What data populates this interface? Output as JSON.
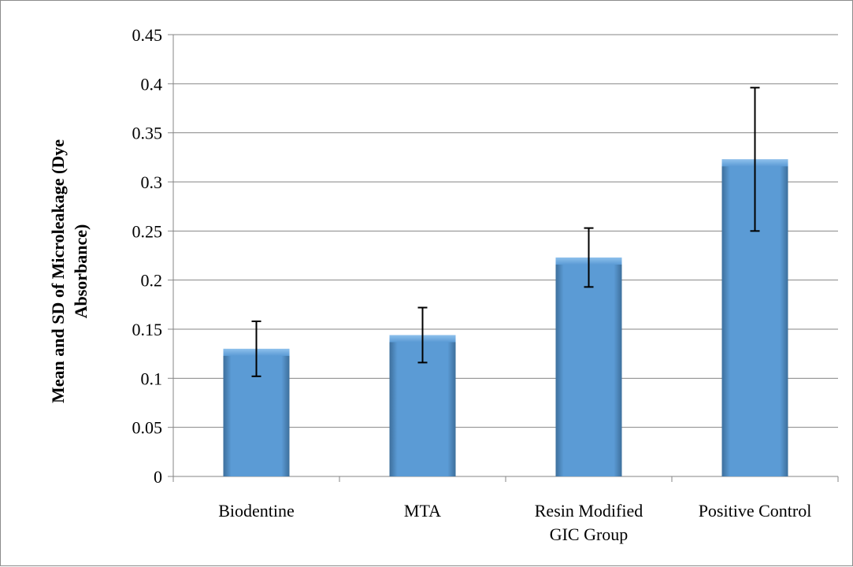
{
  "chart_data": {
    "type": "bar",
    "categories": [
      "Biodentine",
      "MTA",
      "Resin Modified GIC Group",
      "Positive Control"
    ],
    "category_label_lines": [
      [
        "Biodentine"
      ],
      [
        "MTA"
      ],
      [
        "Resin Modified",
        "GIC Group"
      ],
      [
        "Positive Control"
      ]
    ],
    "series": [
      {
        "values": [
          0.13,
          0.144,
          0.223,
          0.323
        ],
        "error": [
          0.028,
          0.028,
          0.03,
          0.073
        ]
      }
    ],
    "title": "",
    "xlabel": "",
    "ylabel": "Mean and SD of Microleakage (Dye Absorbance)",
    "ylabel_lines": [
      "Mean and SD of Microleakage (Dye",
      "Absorbance)"
    ],
    "ylim": [
      0,
      0.45
    ],
    "yticks": [
      0,
      0.05,
      0.1,
      0.15,
      0.2,
      0.25,
      0.3,
      0.35,
      0.4,
      0.45
    ],
    "ytick_labels": [
      "0",
      "0.05",
      "0.1",
      "0.15",
      "0.2",
      "0.25",
      "0.3",
      "0.35",
      "0.4",
      "0.45"
    ],
    "grid": true,
    "error_bars": true,
    "legend": "none",
    "colors": {
      "bar_fill": "#5b9bd5",
      "bar_highlight": "#8ec0ec",
      "bar_shadow": "#3d6f9c",
      "grid": "#868686",
      "axis": "#868686",
      "error_bar": "#000000"
    }
  }
}
